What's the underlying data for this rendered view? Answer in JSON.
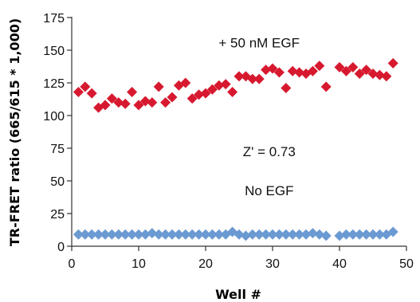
{
  "chart_data": {
    "type": "scatter",
    "title": "",
    "xlabel": "Well #",
    "ylabel": "TR-FRET ratio (665/615 * 1,000)",
    "xlim": [
      0,
      50
    ],
    "ylim": [
      0,
      175
    ],
    "xticks": [
      0,
      10,
      20,
      30,
      40,
      50
    ],
    "yticks": [
      0,
      25,
      50,
      75,
      100,
      125,
      150,
      175
    ],
    "grid": false,
    "legend": "none",
    "marker": "diamond",
    "series": [
      {
        "color": "#d7192f",
        "x": [
          1,
          2,
          3,
          4,
          5,
          6,
          7,
          8,
          9,
          10,
          11,
          12,
          13,
          14,
          15,
          16,
          17,
          18,
          19,
          20,
          21,
          22,
          23,
          24,
          25,
          26,
          27,
          28,
          29,
          30,
          31,
          32,
          33,
          34,
          35,
          36,
          37,
          38,
          40,
          41,
          42,
          43,
          44,
          45,
          46,
          47,
          48
        ],
        "y": [
          118,
          122,
          117,
          106,
          108,
          113,
          110,
          109,
          118,
          108,
          111,
          110,
          122,
          110,
          114,
          123,
          125,
          113,
          116,
          117,
          120,
          123,
          124,
          118,
          130,
          130,
          128,
          128,
          135,
          136,
          133,
          121,
          134,
          133,
          132,
          134,
          138,
          122,
          137,
          134,
          137,
          132,
          135,
          132,
          131,
          130,
          140
        ]
      },
      {
        "color": "#6b9ad2",
        "x": [
          1,
          2,
          3,
          4,
          5,
          6,
          7,
          8,
          9,
          10,
          11,
          12,
          13,
          14,
          15,
          16,
          17,
          18,
          19,
          20,
          21,
          22,
          23,
          24,
          25,
          26,
          27,
          28,
          29,
          30,
          31,
          32,
          33,
          34,
          35,
          36,
          37,
          38,
          40,
          41,
          42,
          43,
          44,
          45,
          46,
          47,
          48
        ],
        "y": [
          9,
          9,
          9,
          9,
          9,
          9,
          9,
          9,
          9,
          9,
          9,
          10,
          9,
          9,
          9,
          9,
          9,
          9,
          9,
          9,
          9,
          9,
          9,
          11,
          9,
          8,
          9,
          9,
          9,
          9,
          9,
          9,
          9,
          9,
          9,
          10,
          9,
          8,
          8,
          9,
          9,
          9,
          9,
          9,
          9,
          9,
          11
        ]
      }
    ],
    "annotations": [
      {
        "text": "+ 50 nM  EGF",
        "x": 28,
        "y": 152
      },
      {
        "text": "Z' = 0.73",
        "x": 29.5,
        "y": 69
      },
      {
        "text": "No EGF",
        "x": 29.5,
        "y": 39
      }
    ]
  }
}
